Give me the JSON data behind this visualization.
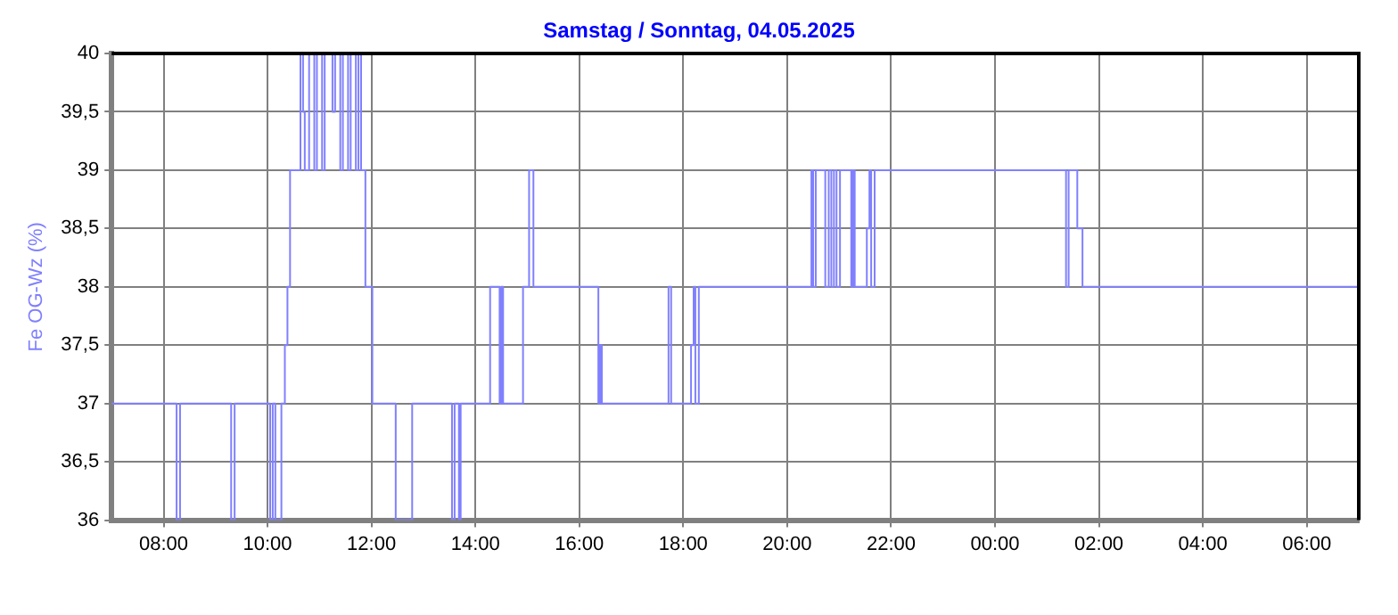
{
  "chart_data": {
    "type": "step",
    "title": "Samstag / Sonntag, 04.05.2025",
    "ylabel": "Fe OG-Wz (%)",
    "x": [
      "2025-05-03T07:00",
      "2025-05-03T08:15",
      "2025-05-03T08:19",
      "2025-05-03T09:18",
      "2025-05-03T09:22",
      "2025-05-03T10:03",
      "2025-05-03T10:06",
      "2025-05-03T10:09",
      "2025-05-03T10:16",
      "2025-05-03T10:20",
      "2025-05-03T10:23",
      "2025-05-03T10:26",
      "2025-05-03T10:38",
      "2025-05-03T10:41",
      "2025-05-03T10:43",
      "2025-05-03T10:48",
      "2025-05-03T10:54",
      "2025-05-03T10:57",
      "2025-05-03T11:03",
      "2025-05-03T11:06",
      "2025-05-03T11:15",
      "2025-05-03T11:18",
      "2025-05-03T11:24",
      "2025-05-03T11:27",
      "2025-05-03T11:33",
      "2025-05-03T11:36",
      "2025-05-03T11:42",
      "2025-05-03T11:45",
      "2025-05-03T11:48",
      "2025-05-03T11:53",
      "2025-05-03T12:01",
      "2025-05-03T12:28",
      "2025-05-03T12:47",
      "2025-05-03T13:33",
      "2025-05-03T13:36",
      "2025-05-03T13:41",
      "2025-05-03T13:43",
      "2025-05-03T14:17",
      "2025-05-03T14:28",
      "2025-05-03T14:30",
      "2025-05-03T14:32",
      "2025-05-03T14:55",
      "2025-05-03T15:02",
      "2025-05-03T15:07",
      "2025-05-03T16:22",
      "2025-05-03T16:24",
      "2025-05-03T16:26",
      "2025-05-03T17:43",
      "2025-05-03T17:46",
      "2025-05-03T18:09",
      "2025-05-03T18:12",
      "2025-05-03T18:14",
      "2025-05-03T18:18",
      "2025-05-03T20:28",
      "2025-05-03T20:30",
      "2025-05-03T20:33",
      "2025-05-03T20:44",
      "2025-05-03T20:48",
      "2025-05-03T20:51",
      "2025-05-03T20:54",
      "2025-05-03T20:57",
      "2025-05-03T21:01",
      "2025-05-03T21:14",
      "2025-05-03T21:16",
      "2025-05-03T21:18",
      "2025-05-03T21:32",
      "2025-05-03T21:35",
      "2025-05-03T21:37",
      "2025-05-03T21:41",
      "2025-05-04T01:22",
      "2025-05-04T01:25",
      "2025-05-04T01:35",
      "2025-05-04T01:41",
      "2025-05-04T07:00"
    ],
    "values": [
      37,
      36,
      37,
      36,
      37,
      36,
      37,
      36,
      37,
      37.5,
      38,
      39,
      40,
      39.5,
      39,
      40,
      39,
      40,
      39,
      40,
      39.5,
      40,
      39,
      40,
      39,
      40,
      39,
      40,
      39,
      38,
      37,
      36,
      37,
      36,
      37,
      36,
      37,
      38,
      37,
      38,
      37,
      38,
      39,
      38,
      37,
      37.5,
      37,
      38,
      37,
      37.5,
      38,
      37,
      38,
      39,
      38,
      39,
      38,
      39,
      38,
      39,
      38,
      39,
      38,
      39,
      38,
      38.5,
      39,
      38,
      39,
      38,
      39,
      38.5,
      38,
      38
    ],
    "color": "#8080ff",
    "xlim": [
      "2025-05-03T07:00",
      "2025-05-04T07:00"
    ],
    "xticks": [
      {
        "value": "2025-05-03T08:00",
        "label": "08:00"
      },
      {
        "value": "2025-05-03T10:00",
        "label": "10:00"
      },
      {
        "value": "2025-05-03T12:00",
        "label": "12:00"
      },
      {
        "value": "2025-05-03T14:00",
        "label": "14:00"
      },
      {
        "value": "2025-05-03T16:00",
        "label": "16:00"
      },
      {
        "value": "2025-05-03T18:00",
        "label": "18:00"
      },
      {
        "value": "2025-05-03T20:00",
        "label": "20:00"
      },
      {
        "value": "2025-05-03T22:00",
        "label": "22:00"
      },
      {
        "value": "2025-05-04T00:00",
        "label": "00:00"
      },
      {
        "value": "2025-05-04T02:00",
        "label": "02:00"
      },
      {
        "value": "2025-05-04T04:00",
        "label": "04:00"
      },
      {
        "value": "2025-05-04T06:00",
        "label": "06:00"
      }
    ],
    "ylim": [
      36,
      40
    ],
    "yticks": [
      36,
      {
        "value": 36.5,
        "label": "36,5"
      },
      37,
      {
        "value": 37.5,
        "label": "37,5"
      },
      38,
      {
        "value": 38.5,
        "label": "38,5"
      },
      39,
      {
        "value": 39.5,
        "label": "39,5"
      },
      40
    ],
    "grid": true,
    "legend": false,
    "marker": "none",
    "line_style": "solid"
  }
}
